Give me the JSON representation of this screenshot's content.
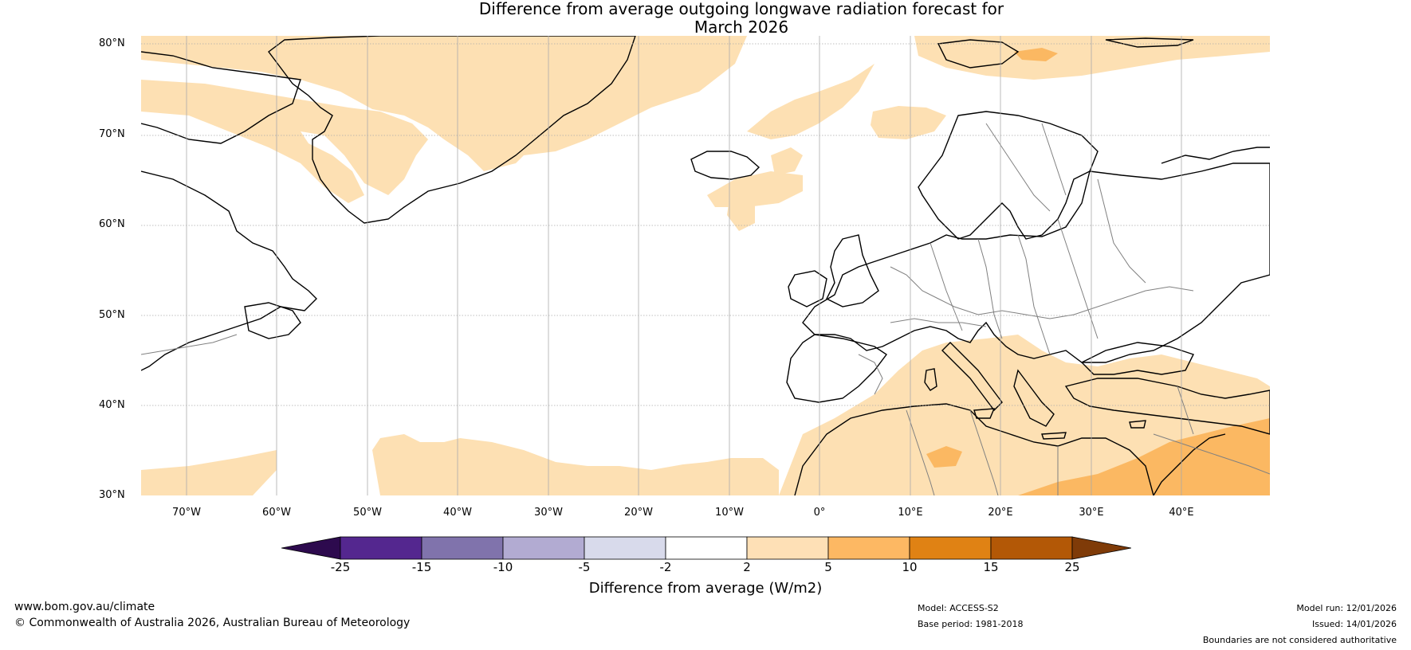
{
  "title": {
    "line1": "Difference from average outgoing longwave radiation forecast for",
    "line2": "March 2026"
  },
  "map": {
    "ocean_color": "#ffffff",
    "anomaly_light_color": "#fde0b3",
    "anomaly_medium_color": "#fbb862",
    "coast_color": "#000000",
    "border_color": "#808080",
    "gridline_color": "#999999"
  },
  "axes": {
    "lat_labels": [
      "80°N",
      "70°N",
      "60°N",
      "50°N",
      "40°N",
      "30°N"
    ],
    "lon_labels": [
      "70°W",
      "60°W",
      "50°W",
      "40°W",
      "30°W",
      "20°W",
      "10°W",
      "0°",
      "10°E",
      "20°E",
      "30°E",
      "40°E"
    ]
  },
  "colorbar": {
    "label": "Difference from average (W/m2)",
    "ticks": [
      "-25",
      "-15",
      "-10",
      "-5",
      "-2",
      "2",
      "5",
      "10",
      "15",
      "25"
    ],
    "bins": [
      {
        "range": "< -25",
        "color": "#2d0a4e"
      },
      {
        "range": "-25 to -15",
        "color": "#54278f"
      },
      {
        "range": "-15 to -10",
        "color": "#8073ac"
      },
      {
        "range": "-10 to -5",
        "color": "#b2abd2"
      },
      {
        "range": "-5 to -2",
        "color": "#d8daeb"
      },
      {
        "range": "-2 to 2",
        "color": "#ffffff"
      },
      {
        "range": "2 to 5",
        "color": "#fee0b6"
      },
      {
        "range": "5 to 10",
        "color": "#fdb863"
      },
      {
        "range": "10 to 15",
        "color": "#e08214"
      },
      {
        "range": "15 to 25",
        "color": "#b35806"
      },
      {
        "range": "> 25",
        "color": "#7f3b08"
      }
    ]
  },
  "footer": {
    "website": "www.bom.gov.au/climate",
    "copyright": "© Commonwealth of Australia 2026, Australian Bureau of Meteorology",
    "model": "Model: ACCESS-S2",
    "base_period": "Base period: 1981-2018",
    "model_run": "Model run: 12/01/2026",
    "issued": "Issued: 14/01/2026",
    "disclaimer": "Boundaries are not considered authoritative"
  }
}
